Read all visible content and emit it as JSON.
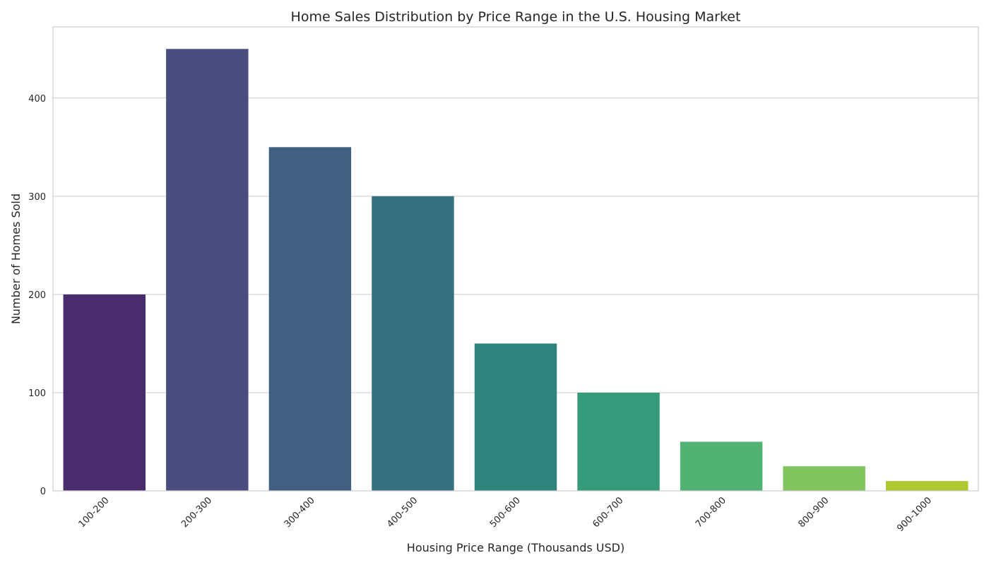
{
  "chart_data": {
    "type": "bar",
    "title": "Home Sales Distribution by Price Range in the U.S. Housing Market",
    "xlabel": "Housing Price Range (Thousands USD)",
    "ylabel": "Number of Homes Sold",
    "categories": [
      "100-200",
      "200-300",
      "300-400",
      "400-500",
      "500-600",
      "600-700",
      "700-800",
      "800-900",
      "900-1000"
    ],
    "values": [
      200,
      450,
      350,
      300,
      150,
      100,
      50,
      25,
      10
    ],
    "colors": [
      "#482c6b",
      "#4a4d7d",
      "#415f80",
      "#367180",
      "#2e837c",
      "#349a79",
      "#52b274",
      "#80c35f",
      "#b2c830"
    ],
    "ylim": [
      0,
      472.5
    ],
    "yticks": [
      0,
      100,
      200,
      300,
      400
    ],
    "grid": true,
    "legend": "none"
  }
}
